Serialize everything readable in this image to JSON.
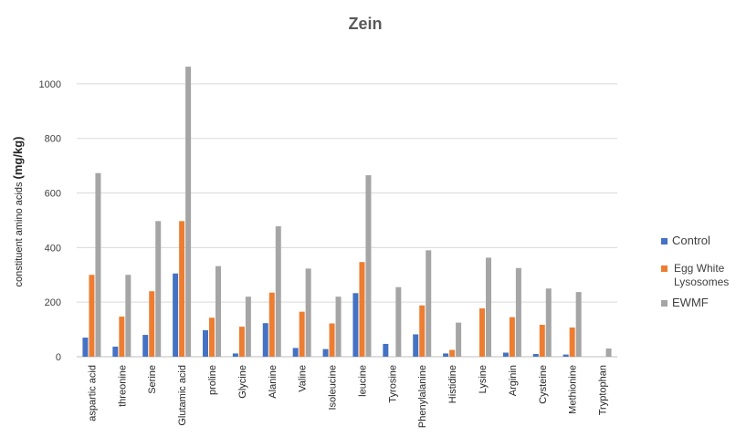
{
  "chart_data": {
    "type": "bar",
    "title": "Zein",
    "ylabel_prefix": "constituent amino acids ",
    "ylabel_unit": "(mg/kg)",
    "xlabel": "",
    "ylim": [
      0,
      1100
    ],
    "yticks": [
      0,
      200,
      400,
      600,
      800,
      1000
    ],
    "grid": true,
    "legend_position": "right",
    "categories": [
      "aspartic acid",
      "threonine",
      "Serine",
      "Glutamic acid",
      "proline",
      "Glycine",
      "Alanine",
      "Valine",
      "Isoleucine",
      "leucine",
      "Tyrosine",
      "Phenylalanine",
      "Histidine",
      "Lysine",
      "Arginin",
      "Cysteine",
      "Methionine",
      "Tryptophan"
    ],
    "series": [
      {
        "name": "Control",
        "color": "#4472C4",
        "values": [
          70,
          37,
          80,
          305,
          97,
          12,
          123,
          32,
          28,
          233,
          47,
          82,
          12,
          0,
          15,
          10,
          8,
          0
        ]
      },
      {
        "name": "Egg White Lysosomes",
        "color": "#ED7D31",
        "values": [
          300,
          147,
          240,
          497,
          143,
          110,
          235,
          165,
          122,
          347,
          0,
          188,
          25,
          177,
          145,
          117,
          107,
          0
        ]
      },
      {
        "name": "EWMF",
        "color": "#A5A5A5",
        "values": [
          673,
          300,
          497,
          1063,
          332,
          220,
          478,
          323,
          220,
          665,
          255,
          390,
          125,
          363,
          325,
          250,
          237,
          30
        ]
      }
    ]
  }
}
